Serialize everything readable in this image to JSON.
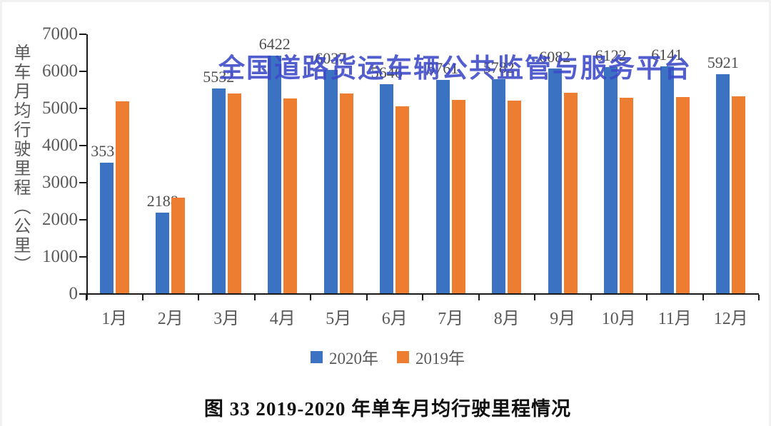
{
  "watermark": {
    "text": "全国道路货运车辆公共监管与服务平台",
    "color": "#3c48c8"
  },
  "caption": {
    "text": "图 33  2019-2020 年单车月均行驶里程情况"
  },
  "chart_data": {
    "type": "bar",
    "title": "",
    "xlabel": "",
    "ylabel": "单车月均行驶里程（公里）",
    "ylim": [
      0,
      7000
    ],
    "ytick_step": 1000,
    "ytick_labels": [
      "0",
      "1000",
      "2000",
      "3000",
      "4000",
      "5000",
      "6000",
      "7000"
    ],
    "grid": false,
    "legend_position": "bottom",
    "categories": [
      "1月",
      "2月",
      "3月",
      "4月",
      "5月",
      "6月",
      "7月",
      "8月",
      "9月",
      "10月",
      "11月",
      "12月"
    ],
    "series": [
      {
        "name": "2020年",
        "color": "#3b72c1",
        "values": [
          3531,
          2188,
          5532,
          6422,
          6037,
          5646,
          5761,
          5782,
          6082,
          6122,
          6141,
          5921
        ],
        "labels_visible": true
      },
      {
        "name": "2019年",
        "color": "#ed7d31",
        "values": [
          5200,
          2590,
          5400,
          5270,
          5400,
          5060,
          5230,
          5210,
          5420,
          5280,
          5300,
          5330
        ],
        "labels_visible": false
      }
    ]
  }
}
